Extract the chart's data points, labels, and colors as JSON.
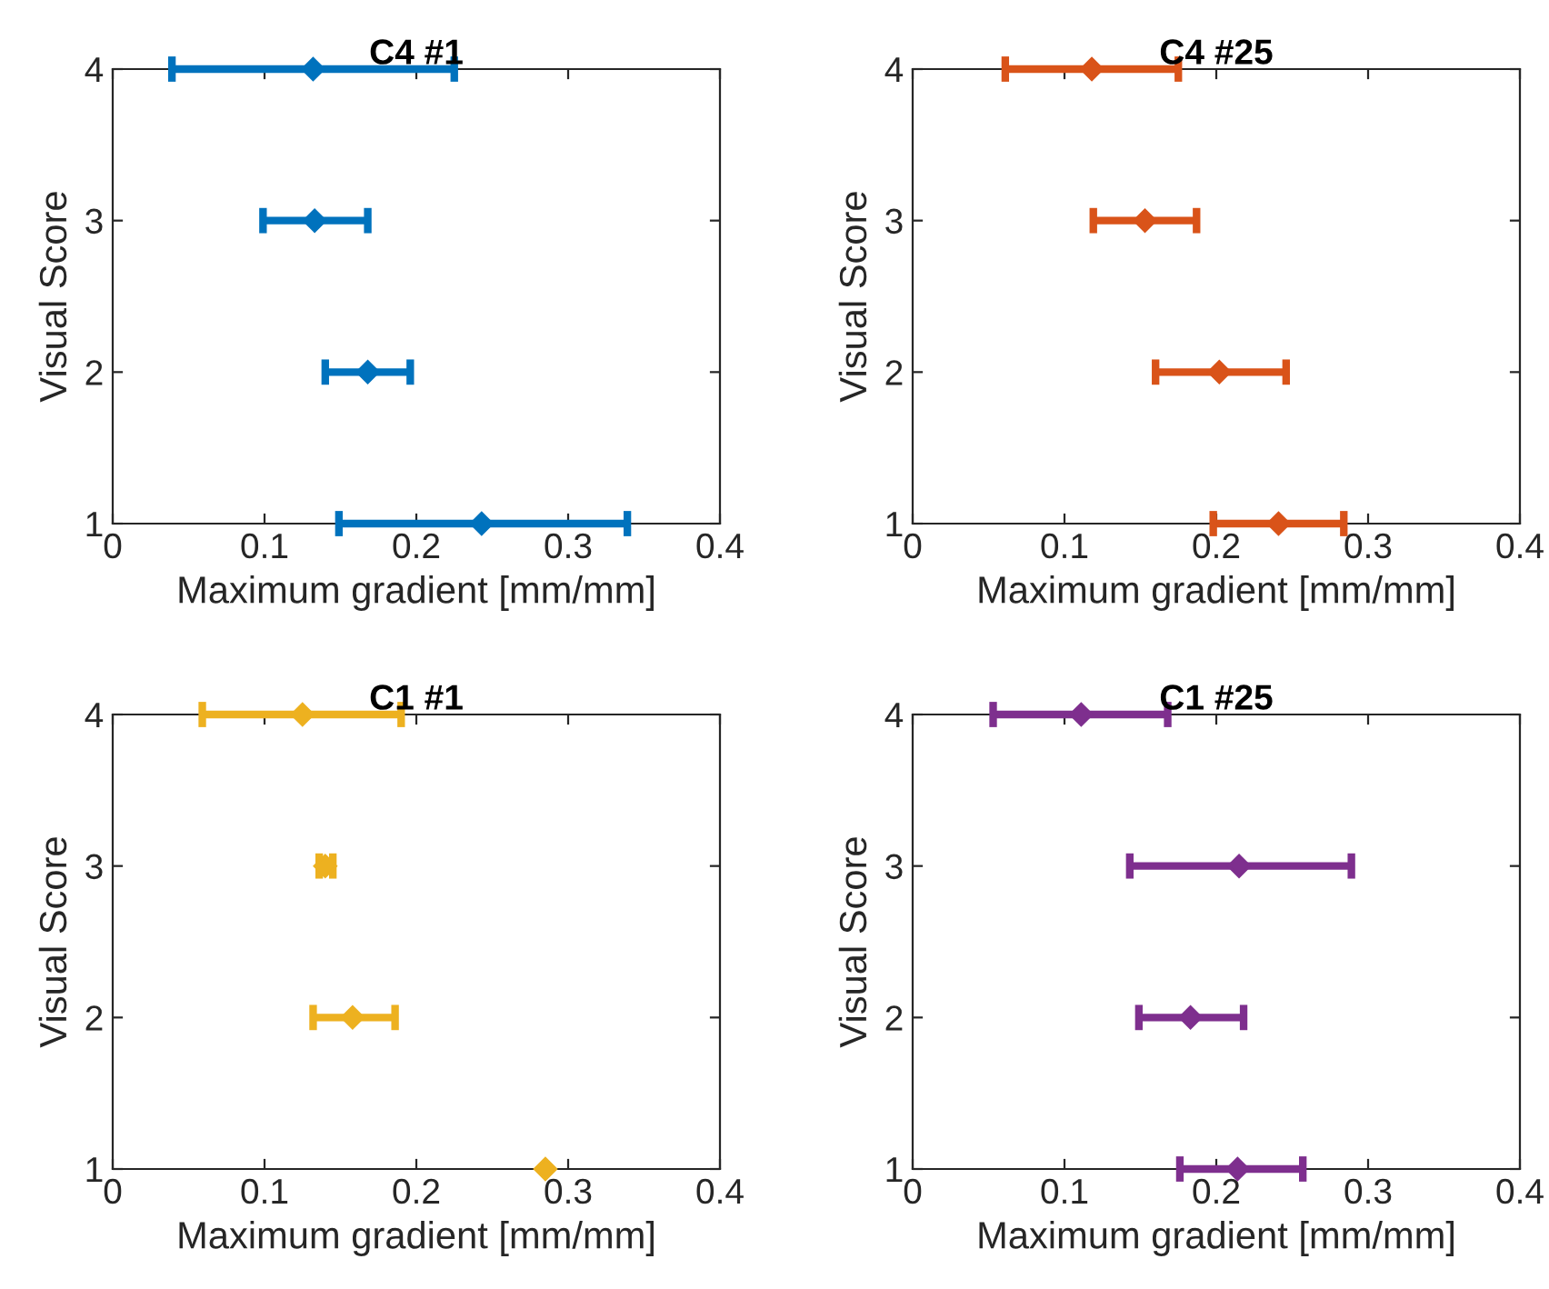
{
  "chart_data": [
    {
      "type": "scatter",
      "title": "C4 #1",
      "xlabel": "Maximum gradient [mm/mm]",
      "ylabel": "Visual Score",
      "xlim": [
        0,
        0.4
      ],
      "xticks": [
        0,
        0.1,
        0.2,
        0.3,
        0.4
      ],
      "ylim": [
        1,
        4
      ],
      "yticks": [
        1,
        2,
        3,
        4
      ],
      "marker": "diamond",
      "grid": false,
      "color": "#0072bd",
      "x": [
        0.132,
        0.133,
        0.168,
        0.243
      ],
      "values": [
        4,
        3,
        2,
        1
      ],
      "xerrors": [
        [
          0.039,
          0.225
        ],
        [
          0.099,
          0.168
        ],
        [
          0.14,
          0.196
        ],
        [
          0.149,
          0.339
        ]
      ]
    },
    {
      "type": "scatter",
      "title": "C4 #25",
      "xlabel": "Maximum gradient [mm/mm]",
      "ylabel": "Visual Score",
      "xlim": [
        0,
        0.4
      ],
      "xticks": [
        0,
        0.1,
        0.2,
        0.3,
        0.4
      ],
      "ylim": [
        1,
        4
      ],
      "yticks": [
        1,
        2,
        3,
        4
      ],
      "marker": "diamond",
      "grid": false,
      "color": "#d95319",
      "x": [
        0.118,
        0.153,
        0.202,
        0.241
      ],
      "values": [
        4,
        3,
        2,
        1
      ],
      "xerrors": [
        [
          0.061,
          0.175
        ],
        [
          0.119,
          0.187
        ],
        [
          0.16,
          0.246
        ],
        [
          0.198,
          0.284
        ]
      ]
    },
    {
      "type": "scatter",
      "title": "C1 #1",
      "xlabel": "Maximum gradient [mm/mm]",
      "ylabel": "Visual Score",
      "xlim": [
        0,
        0.4
      ],
      "xticks": [
        0,
        0.1,
        0.2,
        0.3,
        0.4
      ],
      "ylim": [
        1,
        4
      ],
      "yticks": [
        1,
        2,
        3,
        4
      ],
      "marker": "diamond",
      "grid": false,
      "color": "#edb120",
      "x": [
        0.125,
        0.14,
        0.158,
        0.285
      ],
      "values": [
        4,
        3,
        2,
        1
      ],
      "xerrors": [
        [
          0.059,
          0.19
        ],
        [
          0.136,
          0.145
        ],
        [
          0.132,
          0.186
        ],
        null
      ]
    },
    {
      "type": "scatter",
      "title": "C1 #25",
      "xlabel": "Maximum gradient [mm/mm]",
      "ylabel": "Visual Score",
      "xlim": [
        0,
        0.4
      ],
      "xticks": [
        0,
        0.1,
        0.2,
        0.3,
        0.4
      ],
      "ylim": [
        1,
        4
      ],
      "yticks": [
        1,
        2,
        3,
        4
      ],
      "marker": "diamond",
      "grid": false,
      "color": "#7e2f8e",
      "x": [
        0.111,
        0.215,
        0.183,
        0.214
      ],
      "values": [
        4,
        3,
        2,
        1
      ],
      "xerrors": [
        [
          0.053,
          0.168
        ],
        [
          0.143,
          0.289
        ],
        [
          0.149,
          0.218
        ],
        [
          0.176,
          0.257
        ]
      ]
    }
  ]
}
